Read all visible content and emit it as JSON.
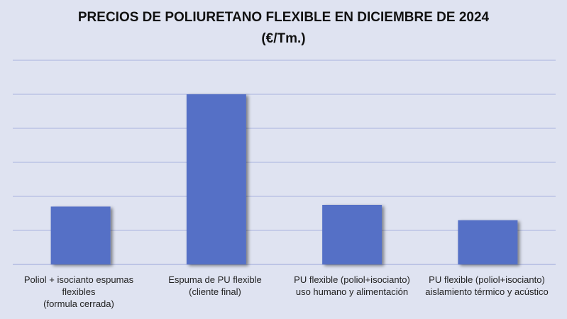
{
  "chart_data": {
    "type": "bar",
    "title": "PRECIOS DE POLIURETANO FLEXIBLE EN DICIEMBRE DE 2024",
    "subtitle": "(€/Tm.)",
    "categories": [
      "Poliol + isocianto espumas\nflexibles\n(formula cerrada)",
      "Espuma de PU flexible\n(cliente final)",
      "PU flexible (poliol+isocianto)\nuso humano y alimentación",
      "PU flexible (poliol+isocianto)\naislamiento térmico y acústico"
    ],
    "values": [
      1.7,
      5.0,
      1.75,
      1.3
    ],
    "ylim": [
      0,
      6
    ],
    "grid": true,
    "y_tick_labels_shown": false,
    "legend": "none",
    "bar_color": "#5470c6",
    "grid_color": "#a9b3de",
    "background": "#dfe3f1"
  }
}
